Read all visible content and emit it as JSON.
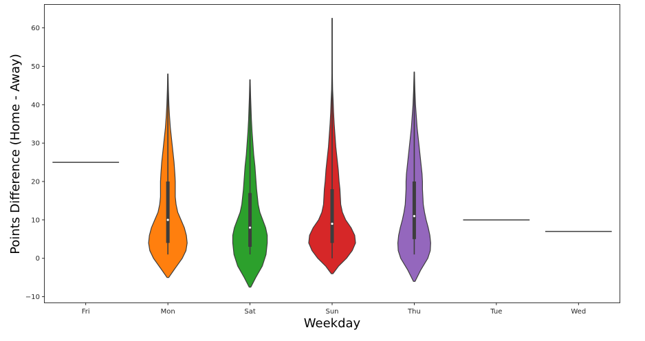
{
  "chart_data": {
    "type": "violin",
    "title": "",
    "xlabel": "Weekday",
    "ylabel": "Points Difference (Home - Away)",
    "ylim": [
      -11.5,
      66
    ],
    "yticks": [
      -10,
      0,
      10,
      20,
      30,
      40,
      50,
      60
    ],
    "ytick_labels": [
      "−10",
      "0",
      "10",
      "20",
      "30",
      "40",
      "50",
      "60"
    ],
    "grid": false,
    "categories": [
      "Fri",
      "Mon",
      "Sat",
      "Sun",
      "Thu",
      "Tue",
      "Wed"
    ],
    "series": [
      {
        "category": "Fri",
        "color": "#1f77b4",
        "single_value": 25
      },
      {
        "category": "Mon",
        "color": "#ff7f0e",
        "min": 1,
        "max": 48,
        "q1": 4,
        "median": 10,
        "q3": 20,
        "kde_min": -5,
        "kde_max": 48,
        "profile": [
          [
            -5,
            0.02
          ],
          [
            -3,
            0.15
          ],
          [
            0,
            0.35
          ],
          [
            2,
            0.44
          ],
          [
            4,
            0.47
          ],
          [
            6,
            0.45
          ],
          [
            8,
            0.4
          ],
          [
            10,
            0.32
          ],
          [
            12,
            0.24
          ],
          [
            14,
            0.2
          ],
          [
            16,
            0.18
          ],
          [
            18,
            0.18
          ],
          [
            20,
            0.18
          ],
          [
            22,
            0.17
          ],
          [
            25,
            0.15
          ],
          [
            28,
            0.12
          ],
          [
            31,
            0.09
          ],
          [
            34,
            0.06
          ],
          [
            37,
            0.04
          ],
          [
            40,
            0.025
          ],
          [
            44,
            0.012
          ],
          [
            48,
            0.004
          ]
        ]
      },
      {
        "category": "Sat",
        "color": "#2ca02c",
        "min": 1,
        "max": 46.5,
        "q1": 3,
        "median": 8,
        "q3": 17,
        "kde_min": -7.5,
        "kde_max": 46.5,
        "profile": [
          [
            -7.5,
            0.02
          ],
          [
            -5,
            0.14
          ],
          [
            -2,
            0.3
          ],
          [
            1,
            0.39
          ],
          [
            4,
            0.42
          ],
          [
            6,
            0.42
          ],
          [
            8,
            0.38
          ],
          [
            10,
            0.31
          ],
          [
            12,
            0.24
          ],
          [
            14,
            0.2
          ],
          [
            16,
            0.18
          ],
          [
            18,
            0.16
          ],
          [
            21,
            0.14
          ],
          [
            24,
            0.12
          ],
          [
            27,
            0.09
          ],
          [
            30,
            0.07
          ],
          [
            33,
            0.05
          ],
          [
            36,
            0.035
          ],
          [
            39,
            0.025
          ],
          [
            42,
            0.015
          ],
          [
            46.5,
            0.004
          ]
        ]
      },
      {
        "category": "Sun",
        "color": "#d62728",
        "min": 0,
        "max": 62.5,
        "q1": 4,
        "median": 9,
        "q3": 18,
        "kde_min": -4,
        "kde_max": 62.5,
        "profile": [
          [
            -4,
            0.02
          ],
          [
            -2,
            0.16
          ],
          [
            0,
            0.35
          ],
          [
            2,
            0.49
          ],
          [
            4,
            0.57
          ],
          [
            6,
            0.55
          ],
          [
            8,
            0.46
          ],
          [
            10,
            0.33
          ],
          [
            12,
            0.25
          ],
          [
            14,
            0.21
          ],
          [
            16,
            0.2
          ],
          [
            18,
            0.19
          ],
          [
            20,
            0.17
          ],
          [
            23,
            0.15
          ],
          [
            26,
            0.12
          ],
          [
            29,
            0.09
          ],
          [
            32,
            0.07
          ],
          [
            35,
            0.05
          ],
          [
            38,
            0.035
          ],
          [
            41,
            0.025
          ],
          [
            44,
            0.012
          ],
          [
            48,
            0.006
          ],
          [
            52,
            0.004
          ],
          [
            56,
            0.003
          ],
          [
            62.5,
            0.003
          ]
        ]
      },
      {
        "category": "Thu",
        "color": "#9467bd",
        "min": 1,
        "max": 48.5,
        "q1": 5,
        "median": 11,
        "q3": 20,
        "kde_min": -6,
        "kde_max": 48.5,
        "profile": [
          [
            -6,
            0.02
          ],
          [
            -3,
            0.16
          ],
          [
            0,
            0.33
          ],
          [
            2,
            0.39
          ],
          [
            4,
            0.4
          ],
          [
            6,
            0.38
          ],
          [
            8,
            0.34
          ],
          [
            10,
            0.29
          ],
          [
            12,
            0.25
          ],
          [
            14,
            0.22
          ],
          [
            16,
            0.21
          ],
          [
            18,
            0.2
          ],
          [
            20,
            0.2
          ],
          [
            22,
            0.19
          ],
          [
            25,
            0.16
          ],
          [
            28,
            0.13
          ],
          [
            31,
            0.1
          ],
          [
            34,
            0.07
          ],
          [
            37,
            0.05
          ],
          [
            40,
            0.03
          ],
          [
            44,
            0.015
          ],
          [
            48.5,
            0.004
          ]
        ]
      },
      {
        "category": "Tue",
        "color": "#8c564b",
        "single_value": 10
      },
      {
        "category": "Wed",
        "color": "#e377c2",
        "single_value": 7
      }
    ]
  }
}
